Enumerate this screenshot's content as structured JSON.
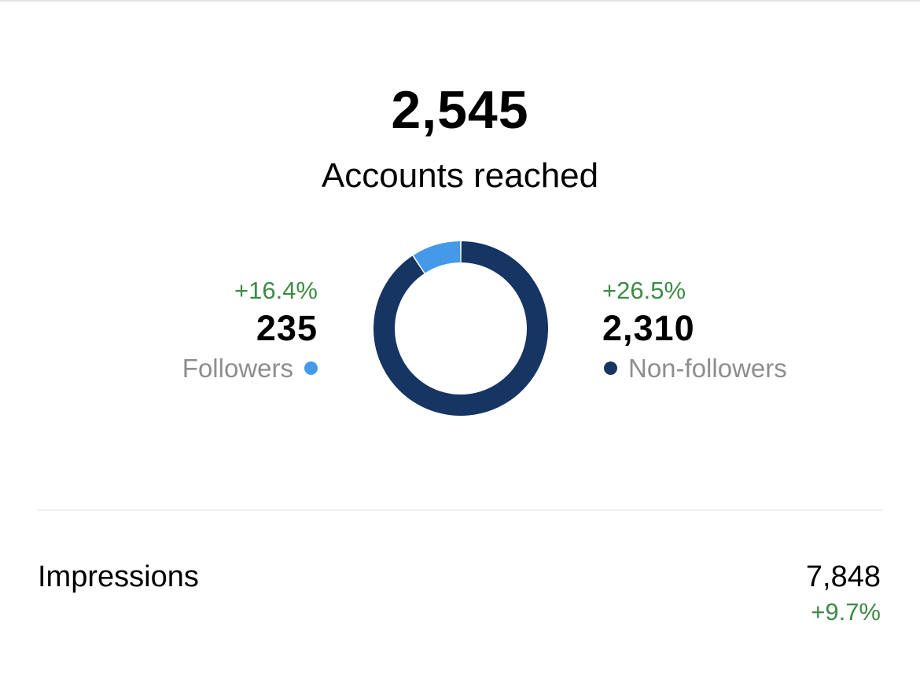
{
  "summary": {
    "total": "2,545",
    "label": "Accounts reached"
  },
  "followers": {
    "change": "+16.4%",
    "value": "235",
    "label": "Followers"
  },
  "non_followers": {
    "change": "+26.5%",
    "value": "2,310",
    "label": "Non-followers"
  },
  "impressions": {
    "label": "Impressions",
    "value": "7,848",
    "change": "+9.7%"
  },
  "colors": {
    "followers": "#4599e9",
    "non_followers": "#163563",
    "positive": "#3f8a47",
    "legend_text": "#8e8e8e",
    "divider": "#efefef"
  },
  "chart_data": {
    "type": "pie",
    "donut": true,
    "categories": [
      "Followers",
      "Non-followers"
    ],
    "values": [
      235,
      2310
    ],
    "colors": [
      "#4599e9",
      "#163563"
    ],
    "start": "top",
    "direction": "counterclockwise-from-followers"
  }
}
